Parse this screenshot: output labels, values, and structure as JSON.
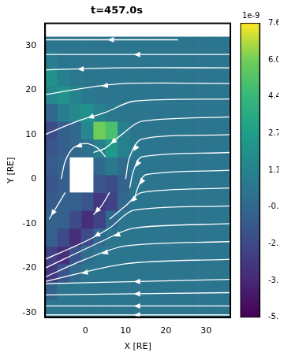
{
  "chart_data": {
    "type": "heatmap",
    "title": "t=457.0s",
    "x_label": "X [RE]",
    "y_label": "Y [RE]",
    "xlim": [
      -10,
      36
    ],
    "ylim": [
      -31,
      35
    ],
    "xticks": [
      0,
      10,
      20,
      30
    ],
    "yticks": [
      -30,
      -20,
      -10,
      0,
      10,
      20,
      30
    ],
    "x_edges": [
      -10,
      -7,
      -4,
      -1,
      2,
      5,
      8,
      11,
      14,
      17,
      20,
      24,
      28,
      32,
      36
    ],
    "y_edges": [
      -31,
      -27,
      -23,
      -19,
      -15,
      -11,
      -7,
      -3,
      1,
      5,
      9,
      13,
      17,
      21,
      25,
      29,
      32
    ],
    "cells": [
      [
        0.3,
        0.3,
        0.3,
        0.3,
        0.3,
        0.3,
        0.3,
        0.3,
        0.3,
        0.3,
        0.3,
        0.3,
        0.3,
        0.3
      ],
      [
        -0.8,
        0.3,
        0.3,
        0.3,
        0.3,
        0.3,
        0.3,
        0.3,
        0.3,
        0.3,
        0.3,
        0.3,
        0.3,
        0.3
      ],
      [
        -3.0,
        -1.5,
        -0.3,
        0.3,
        0.3,
        0.3,
        0.3,
        0.3,
        0.3,
        0.3,
        0.3,
        0.3,
        0.3,
        0.3
      ],
      [
        -2.5,
        -3.5,
        -1.5,
        -0.2,
        0.3,
        0.3,
        0.3,
        0.3,
        0.3,
        0.3,
        0.3,
        0.3,
        0.3,
        0.3
      ],
      [
        -1.0,
        -2.0,
        -3.5,
        -2.0,
        -0.5,
        0.3,
        0.3,
        0.3,
        0.3,
        0.3,
        0.3,
        0.3,
        0.3,
        0.3
      ],
      [
        -0.8,
        -1.0,
        -2.0,
        -3.5,
        -2.5,
        -0.5,
        0.3,
        0.3,
        0.3,
        0.3,
        0.3,
        0.3,
        0.3,
        0.3
      ],
      [
        -1.2,
        -0.8,
        -1.0,
        -1.5,
        -3.0,
        -2.5,
        -0.5,
        0.3,
        0.3,
        0.3,
        0.3,
        0.3,
        0.3,
        0.3
      ],
      [
        -1.5,
        -1.0,
        null,
        null,
        -1.5,
        -2.0,
        -0.8,
        0.3,
        0.3,
        0.3,
        0.3,
        0.3,
        0.3,
        0.3
      ],
      [
        -1.2,
        -0.8,
        null,
        null,
        -0.5,
        0.5,
        -0.3,
        0.3,
        0.3,
        0.3,
        0.3,
        0.3,
        0.3,
        0.3
      ],
      [
        -1.5,
        -1.0,
        -0.5,
        0.0,
        1.0,
        2.5,
        1.0,
        0.5,
        0.3,
        0.3,
        0.3,
        0.3,
        0.3,
        0.3
      ],
      [
        -2.0,
        -1.0,
        -0.5,
        1.5,
        6.0,
        5.0,
        1.0,
        0.3,
        0.3,
        0.3,
        0.3,
        0.3,
        0.3,
        0.3
      ],
      [
        -0.5,
        0.8,
        1.5,
        2.0,
        1.0,
        0.5,
        0.3,
        0.3,
        0.3,
        0.3,
        0.3,
        0.3,
        0.3,
        0.3
      ],
      [
        1.5,
        2.0,
        1.2,
        0.5,
        0.3,
        0.3,
        0.3,
        0.3,
        0.3,
        0.3,
        0.3,
        0.3,
        0.3,
        0.3
      ],
      [
        2.0,
        1.0,
        0.5,
        0.3,
        0.3,
        0.3,
        0.3,
        0.3,
        0.3,
        0.3,
        0.3,
        0.3,
        0.3,
        0.3
      ],
      [
        0.8,
        0.3,
        0.3,
        0.3,
        0.3,
        0.3,
        0.3,
        0.3,
        0.3,
        0.3,
        0.3,
        0.3,
        0.3,
        0.3
      ],
      [
        0.3,
        0.3,
        0.3,
        0.3,
        0.3,
        0.3,
        0.3,
        0.3,
        0.3,
        0.3,
        0.3,
        0.3,
        0.3,
        0.3
      ]
    ],
    "colorbar": {
      "range": [
        -5.43,
        7.68
      ],
      "ticks": [
        -5.43,
        -3.79,
        -2.15,
        -0.51,
        1.13,
        2.77,
        4.41,
        6.05,
        7.68
      ],
      "offset_label": "1e-9"
    },
    "color": "#ffffff",
    "streamlines": [
      {
        "x": [
          23,
          -10
        ],
        "y": [
          31.3,
          31.3
        ]
      },
      {
        "x": [
          36,
          -10
        ],
        "y": [
          28,
          28
        ]
      },
      {
        "x": [
          36,
          8,
          -10
        ],
        "y": [
          25,
          25,
          24.5
        ]
      },
      {
        "x": [
          36,
          10,
          0,
          -10
        ],
        "y": [
          21.5,
          21.5,
          20.5,
          19
        ]
      },
      {
        "x": [
          36,
          12,
          5,
          -2,
          -10
        ],
        "y": [
          18,
          17.5,
          15,
          13,
          10
        ]
      },
      {
        "x": [
          36,
          14,
          9,
          5,
          2
        ],
        "y": [
          14,
          13,
          10,
          7,
          6
        ]
      },
      {
        "x": [
          36,
          14,
          11,
          10
        ],
        "y": [
          10,
          9,
          5,
          0
        ]
      },
      {
        "x": [
          36,
          14,
          12,
          11
        ],
        "y": [
          6,
          5,
          2,
          -2
        ]
      },
      {
        "x": [
          36,
          15,
          13,
          12
        ],
        "y": [
          2,
          1,
          -2,
          -5
        ]
      },
      {
        "x": [
          36,
          14,
          10,
          6
        ],
        "y": [
          -2,
          -3,
          -6,
          -9
        ]
      },
      {
        "x": [
          36,
          12,
          6,
          0,
          -10
        ],
        "y": [
          -6,
          -7,
          -11,
          -14,
          -18
        ]
      },
      {
        "x": [
          36,
          12,
          4,
          -10
        ],
        "y": [
          -10,
          -11,
          -14,
          -20
        ]
      },
      {
        "x": [
          36,
          10,
          0,
          -10
        ],
        "y": [
          -14,
          -15,
          -18,
          -22
        ]
      },
      {
        "x": [
          36,
          10,
          -10
        ],
        "y": [
          -18,
          -19,
          -23
        ]
      },
      {
        "x": [
          36,
          -10
        ],
        "y": [
          -22.5,
          -23.5
        ]
      },
      {
        "x": [
          36,
          -10
        ],
        "y": [
          -25.5,
          -26
        ]
      },
      {
        "x": [
          36,
          -10
        ],
        "y": [
          -28.5,
          -28.5
        ]
      },
      {
        "x": [
          36,
          -10
        ],
        "y": [
          -30.5,
          -30.5
        ]
      },
      {
        "x": [
          5,
          3,
          0,
          -3,
          -5,
          -6
        ],
        "y": [
          5,
          7,
          8,
          7,
          4,
          0
        ]
      },
      {
        "x": [
          -5,
          -7,
          -9
        ],
        "y": [
          -3,
          -6,
          -9
        ]
      },
      {
        "x": [
          6,
          4,
          2
        ],
        "y": [
          -3,
          -6,
          -8
        ]
      }
    ]
  }
}
